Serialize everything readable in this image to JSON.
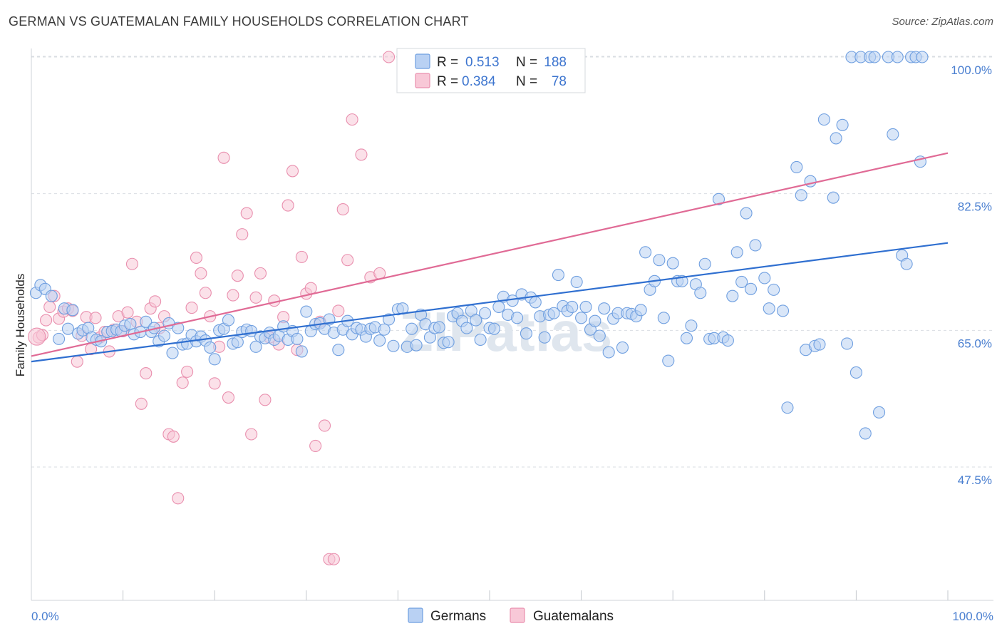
{
  "header": {
    "title": "GERMAN VS GUATEMALAN FAMILY HOUSEHOLDS CORRELATION CHART",
    "source": "Source: ZipAtlas.com"
  },
  "watermark": "ZIPatlas",
  "colors": {
    "germans": "#6f9fe0",
    "germans_fill": "#b9d1f3",
    "germans_line": "#2f6fd0",
    "guatemalans": "#e98fae",
    "guatemalans_fill": "#f8c8d7",
    "guatemalans_line": "#e06a95",
    "tick_text": "#4a7fd0",
    "grid": "#d9dde2"
  },
  "legend": {
    "r_label": "R =",
    "n_label": "N =",
    "germans": {
      "r": "0.513",
      "n": "188"
    },
    "guatemalans": {
      "r": "0.384",
      "n": "78"
    }
  },
  "bottom_legend": [
    "Germans",
    "Guatemalans"
  ],
  "chart_data": {
    "type": "scatter",
    "title": "GERMAN VS GUATEMALAN FAMILY HOUSEHOLDS CORRELATION CHART",
    "xlabel": "",
    "ylabel": "Family Households",
    "xlim": [
      0,
      100
    ],
    "ylim": [
      32,
      102
    ],
    "x_tick_labels": [
      "0.0%",
      "100.0%"
    ],
    "y_ticks": [
      47.5,
      65.0,
      82.5,
      100.0
    ],
    "y_tick_labels": [
      "47.5%",
      "65.0%",
      "82.5%",
      "100.0%"
    ],
    "grid": "horizontal dashed",
    "legend_position": "top-center",
    "series": [
      {
        "name": "Germans",
        "trend": {
          "x": [
            0,
            100
          ],
          "y": [
            61.0,
            76.2
          ]
        },
        "points": [
          [
            0.5,
            69.8
          ],
          [
            1.0,
            70.8
          ],
          [
            1.5,
            70.3
          ],
          [
            2.2,
            69.4
          ],
          [
            3.0,
            63.9
          ],
          [
            3.6,
            67.8
          ],
          [
            4.0,
            65.2
          ],
          [
            4.5,
            67.6
          ],
          [
            5.1,
            64.6
          ],
          [
            5.6,
            65.0
          ],
          [
            6.2,
            65.3
          ],
          [
            6.6,
            64.1
          ],
          [
            7.1,
            63.8
          ],
          [
            7.6,
            63.6
          ],
          [
            8.3,
            64.8
          ],
          [
            8.8,
            64.9
          ],
          [
            9.3,
            65.1
          ],
          [
            9.8,
            64.9
          ],
          [
            10.2,
            65.6
          ],
          [
            10.8,
            65.8
          ],
          [
            11.2,
            64.5
          ],
          [
            11.9,
            64.8
          ],
          [
            12.5,
            66.1
          ],
          [
            13.1,
            64.8
          ],
          [
            13.4,
            65.3
          ],
          [
            13.9,
            63.6
          ],
          [
            14.5,
            64.3
          ],
          [
            15.0,
            65.9
          ],
          [
            15.4,
            62.1
          ],
          [
            16.0,
            65.3
          ],
          [
            16.5,
            63.2
          ],
          [
            17.0,
            63.3
          ],
          [
            17.5,
            64.4
          ],
          [
            18.0,
            63.6
          ],
          [
            18.5,
            64.2
          ],
          [
            19.0,
            63.7
          ],
          [
            19.5,
            62.8
          ],
          [
            20.0,
            61.3
          ],
          [
            20.5,
            65.0
          ],
          [
            21.0,
            65.2
          ],
          [
            21.5,
            66.3
          ],
          [
            22.0,
            63.3
          ],
          [
            22.5,
            63.5
          ],
          [
            23.0,
            64.8
          ],
          [
            23.5,
            65.1
          ],
          [
            24.0,
            64.9
          ],
          [
            24.5,
            62.9
          ],
          [
            25.0,
            64.2
          ],
          [
            25.5,
            64.0
          ],
          [
            26.0,
            64.7
          ],
          [
            26.5,
            63.8
          ],
          [
            27.0,
            64.3
          ],
          [
            27.5,
            65.5
          ],
          [
            28.0,
            63.8
          ],
          [
            28.5,
            64.9
          ],
          [
            29.0,
            63.9
          ],
          [
            29.5,
            62.3
          ],
          [
            30.0,
            67.4
          ],
          [
            30.5,
            64.9
          ],
          [
            31.0,
            65.8
          ],
          [
            31.5,
            65.9
          ],
          [
            32.0,
            65.2
          ],
          [
            32.5,
            66.4
          ],
          [
            33.0,
            64.7
          ],
          [
            33.5,
            62.5
          ],
          [
            34.0,
            65.1
          ],
          [
            34.5,
            66.2
          ],
          [
            35.0,
            64.5
          ],
          [
            35.5,
            65.3
          ],
          [
            36.0,
            65.1
          ],
          [
            36.5,
            64.2
          ],
          [
            37.0,
            65.2
          ],
          [
            37.5,
            65.4
          ],
          [
            38.0,
            63.7
          ],
          [
            38.5,
            65.1
          ],
          [
            39.0,
            66.4
          ],
          [
            39.5,
            63.0
          ],
          [
            40.0,
            67.7
          ],
          [
            40.5,
            67.8
          ],
          [
            41.0,
            62.9
          ],
          [
            41.5,
            65.2
          ],
          [
            42.0,
            63.1
          ],
          [
            42.5,
            67.0
          ],
          [
            43.0,
            65.8
          ],
          [
            43.5,
            64.1
          ],
          [
            44.0,
            65.3
          ],
          [
            44.5,
            65.4
          ],
          [
            45.0,
            63.4
          ],
          [
            45.5,
            63.5
          ],
          [
            46.0,
            66.8
          ],
          [
            46.5,
            67.2
          ],
          [
            47.0,
            66.2
          ],
          [
            47.5,
            65.3
          ],
          [
            48.0,
            67.5
          ],
          [
            48.5,
            66.3
          ],
          [
            49.0,
            63.8
          ],
          [
            49.5,
            67.2
          ],
          [
            50.0,
            65.3
          ],
          [
            50.5,
            65.2
          ],
          [
            51.0,
            68.0
          ],
          [
            51.5,
            69.3
          ],
          [
            52.0,
            67.0
          ],
          [
            52.5,
            68.8
          ],
          [
            53.0,
            66.6
          ],
          [
            53.5,
            69.6
          ],
          [
            54.0,
            64.6
          ],
          [
            54.5,
            69.2
          ],
          [
            55.0,
            68.6
          ],
          [
            55.5,
            66.8
          ],
          [
            56.0,
            64.1
          ],
          [
            56.5,
            67.0
          ],
          [
            57.0,
            67.2
          ],
          [
            57.5,
            72.1
          ],
          [
            58.0,
            68.1
          ],
          [
            58.5,
            67.5
          ],
          [
            59.0,
            68.0
          ],
          [
            59.5,
            71.2
          ],
          [
            60.0,
            66.6
          ],
          [
            60.5,
            68.0
          ],
          [
            61.0,
            65.1
          ],
          [
            61.5,
            66.2
          ],
          [
            62.0,
            64.3
          ],
          [
            62.5,
            67.8
          ],
          [
            63.0,
            62.2
          ],
          [
            63.5,
            66.5
          ],
          [
            64.0,
            67.2
          ],
          [
            64.5,
            62.8
          ],
          [
            65.0,
            67.2
          ],
          [
            65.5,
            67.1
          ],
          [
            66.0,
            66.8
          ],
          [
            66.5,
            67.6
          ],
          [
            67.0,
            75.0
          ],
          [
            67.5,
            70.2
          ],
          [
            68.0,
            71.3
          ],
          [
            68.5,
            74.0
          ],
          [
            69.0,
            66.6
          ],
          [
            69.5,
            61.1
          ],
          [
            70.0,
            73.6
          ],
          [
            70.5,
            71.3
          ],
          [
            71.0,
            71.3
          ],
          [
            71.5,
            64.0
          ],
          [
            72.0,
            65.6
          ],
          [
            72.5,
            70.9
          ],
          [
            73.0,
            69.8
          ],
          [
            73.5,
            73.5
          ],
          [
            74.0,
            63.9
          ],
          [
            74.5,
            64.0
          ],
          [
            75.0,
            81.8
          ],
          [
            75.5,
            64.1
          ],
          [
            76.0,
            63.7
          ],
          [
            76.5,
            69.4
          ],
          [
            77.0,
            75.0
          ],
          [
            77.5,
            71.2
          ],
          [
            78.0,
            80.0
          ],
          [
            78.5,
            70.3
          ],
          [
            79.0,
            75.9
          ],
          [
            80.0,
            71.7
          ],
          [
            80.5,
            67.8
          ],
          [
            81.0,
            70.2
          ],
          [
            82.0,
            67.5
          ],
          [
            82.5,
            55.1
          ],
          [
            83.5,
            85.9
          ],
          [
            84.0,
            82.3
          ],
          [
            84.5,
            62.5
          ],
          [
            85.0,
            84.1
          ],
          [
            85.5,
            63.0
          ],
          [
            86.0,
            63.2
          ],
          [
            86.5,
            92.0
          ],
          [
            87.5,
            82.0
          ],
          [
            87.8,
            89.6
          ],
          [
            88.5,
            91.3
          ],
          [
            89.0,
            63.3
          ],
          [
            89.5,
            100.0
          ],
          [
            90.0,
            59.6
          ],
          [
            90.5,
            100.0
          ],
          [
            91.0,
            51.8
          ],
          [
            91.5,
            100.0
          ],
          [
            92.0,
            100.0
          ],
          [
            92.5,
            54.5
          ],
          [
            93.5,
            100.0
          ],
          [
            94.0,
            90.1
          ],
          [
            94.5,
            100.0
          ],
          [
            95.0,
            74.6
          ],
          [
            95.5,
            73.5
          ],
          [
            96.0,
            100.0
          ],
          [
            96.5,
            100.0
          ],
          [
            97.0,
            86.6
          ],
          [
            97.2,
            100.0
          ]
        ]
      },
      {
        "name": "Guatemalans",
        "trend": {
          "x": [
            0,
            100
          ],
          "y": [
            61.7,
            87.7
          ]
        },
        "points": [
          [
            0.8,
            64.1
          ],
          [
            1.2,
            64.4
          ],
          [
            1.6,
            66.3
          ],
          [
            2.0,
            68.0
          ],
          [
            2.5,
            69.4
          ],
          [
            3.0,
            66.5
          ],
          [
            3.5,
            67.4
          ],
          [
            4.0,
            67.8
          ],
          [
            4.5,
            67.5
          ],
          [
            5.0,
            61.0
          ],
          [
            5.5,
            64.3
          ],
          [
            6.0,
            66.7
          ],
          [
            6.5,
            62.6
          ],
          [
            7.0,
            66.6
          ],
          [
            7.5,
            64.1
          ],
          [
            8.0,
            64.8
          ],
          [
            8.5,
            62.3
          ],
          [
            9.0,
            65.1
          ],
          [
            9.5,
            66.8
          ],
          [
            10.0,
            64.9
          ],
          [
            10.5,
            67.3
          ],
          [
            11.0,
            73.5
          ],
          [
            11.5,
            66.1
          ],
          [
            12.0,
            55.6
          ],
          [
            12.5,
            59.5
          ],
          [
            13.0,
            67.8
          ],
          [
            13.5,
            68.7
          ],
          [
            14.0,
            65.3
          ],
          [
            14.5,
            66.8
          ],
          [
            15.0,
            51.7
          ],
          [
            15.5,
            51.4
          ],
          [
            16.0,
            43.5
          ],
          [
            16.5,
            58.3
          ],
          [
            17.0,
            59.7
          ],
          [
            17.5,
            67.9
          ],
          [
            18.0,
            74.3
          ],
          [
            18.5,
            72.3
          ],
          [
            19.0,
            69.8
          ],
          [
            19.5,
            66.8
          ],
          [
            20.0,
            58.2
          ],
          [
            20.5,
            62.9
          ],
          [
            21.0,
            87.1
          ],
          [
            21.5,
            56.4
          ],
          [
            22.0,
            69.5
          ],
          [
            22.5,
            72.0
          ],
          [
            23.0,
            77.3
          ],
          [
            23.5,
            80.0
          ],
          [
            24.0,
            51.7
          ],
          [
            24.5,
            69.2
          ],
          [
            25.0,
            72.3
          ],
          [
            25.5,
            56.1
          ],
          [
            26.0,
            64.1
          ],
          [
            26.5,
            68.8
          ],
          [
            27.0,
            63.2
          ],
          [
            27.5,
            66.7
          ],
          [
            28.0,
            81.0
          ],
          [
            28.5,
            85.4
          ],
          [
            29.0,
            62.5
          ],
          [
            29.5,
            74.4
          ],
          [
            30.0,
            69.7
          ],
          [
            30.5,
            70.4
          ],
          [
            31.0,
            50.2
          ],
          [
            31.5,
            66.1
          ],
          [
            32.0,
            52.8
          ],
          [
            32.5,
            35.7
          ],
          [
            33.0,
            35.7
          ],
          [
            33.5,
            67.5
          ],
          [
            34.0,
            80.5
          ],
          [
            34.5,
            74.0
          ],
          [
            35.0,
            92.0
          ],
          [
            36.0,
            87.5
          ],
          [
            37.0,
            71.8
          ],
          [
            38.0,
            72.3
          ],
          [
            39.0,
            100.0
          ],
          [
            41.0,
            100.0
          ],
          [
            42.0,
            100.0
          ],
          [
            43.0,
            100.0
          ],
          [
            44.0,
            100.0
          ]
        ]
      }
    ]
  }
}
